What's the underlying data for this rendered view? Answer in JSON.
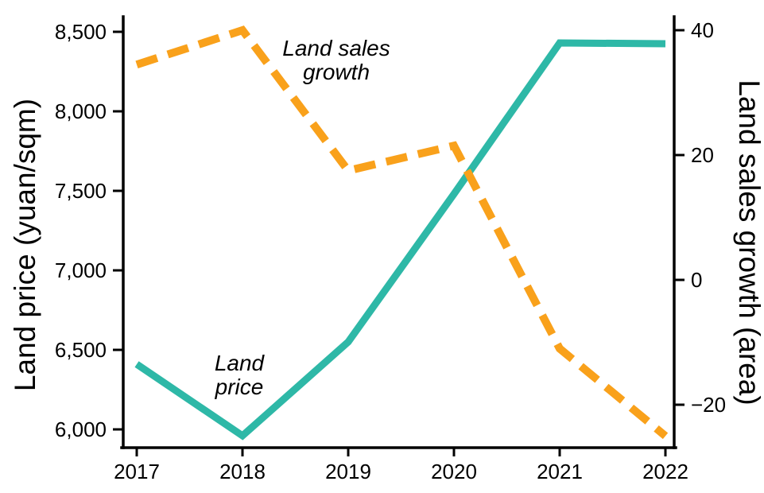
{
  "chart_data": {
    "type": "line",
    "title": "",
    "x_categories": [
      "2017",
      "2018",
      "2019",
      "2020",
      "2021",
      "2022"
    ],
    "series": [
      {
        "name": "Land price",
        "axis": "left",
        "style": "solid",
        "color": "#2eb8a7",
        "values": [
          6410,
          5960,
          6550,
          7480,
          8430,
          8425
        ]
      },
      {
        "name": "Land sales growth",
        "axis": "right",
        "style": "dashed",
        "color": "#f9a11b",
        "values": [
          34.5,
          40,
          17.5,
          21.5,
          -11,
          -25
        ]
      }
    ],
    "left_axis": {
      "label": "Land price (yuan/sqm)",
      "ticks": [
        6000,
        6500,
        7000,
        7500,
        8000,
        8500
      ],
      "tick_labels": [
        "6,000",
        "6,500",
        "7,000",
        "7,500",
        "8,000",
        "8,500"
      ],
      "range": [
        5885,
        8600
      ]
    },
    "right_axis": {
      "label": "Land sales growth (area)",
      "ticks": [
        40,
        20,
        0,
        -20
      ],
      "tick_labels": [
        "40",
        "20",
        "0",
        "−20"
      ],
      "range": [
        -26.9,
        42.3
      ]
    },
    "annotations": [
      {
        "label": "Land sales growth",
        "lines": [
          "Land sales",
          "growth"
        ]
      },
      {
        "label": "Land price",
        "lines": [
          "Land",
          "price"
        ]
      }
    ],
    "grid": false,
    "legend_position": "none",
    "colors": {
      "land_price": "#2eb8a7",
      "land_sales_growth": "#f9a11b",
      "axis": "#000000",
      "background": "#ffffff"
    }
  }
}
